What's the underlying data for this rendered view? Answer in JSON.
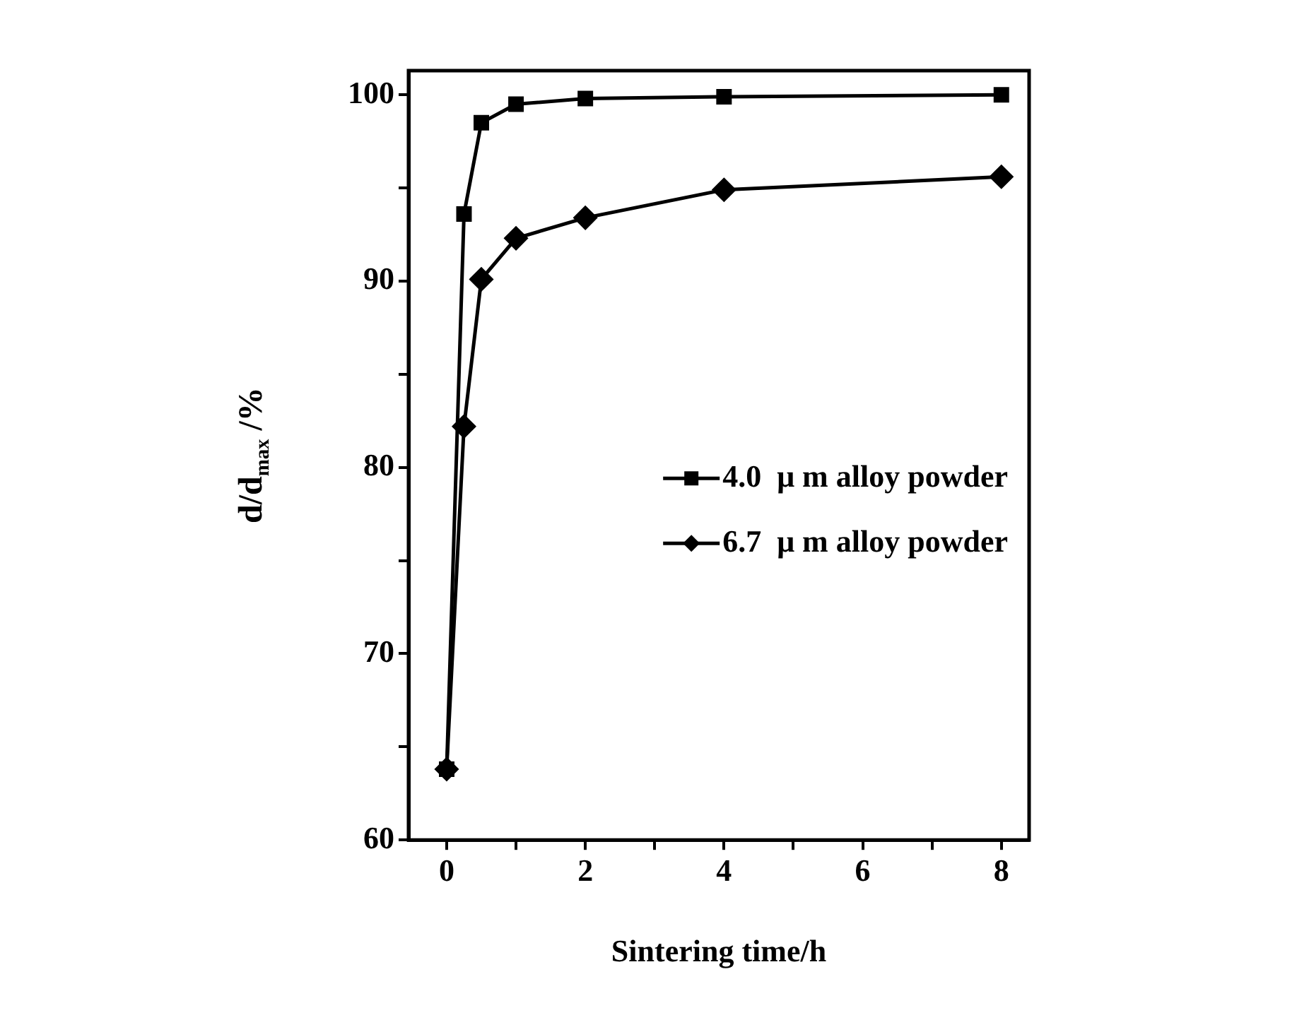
{
  "chart_data": {
    "type": "line",
    "xlabel": "Sintering time/h",
    "ylabel": "d/d$_{max}$ /%",
    "x": [
      0,
      0.25,
      0.5,
      1,
      2,
      4,
      8
    ],
    "series": [
      {
        "name": "4.0  μ m alloy powder",
        "color": "#000000",
        "marker": "square",
        "values": [
          63.8,
          93.6,
          98.5,
          99.5,
          99.8,
          99.9,
          100
        ]
      },
      {
        "name": "6.7  μ m alloy powder",
        "color": "#000000",
        "marker": "diamond",
        "values": [
          63.8,
          82.2,
          90.1,
          92.3,
          93.4,
          94.9,
          95.6
        ]
      }
    ],
    "xlim": [
      -0.55,
      8.4
    ],
    "xticks": [
      0,
      {
        "value": 1,
        "label": null
      },
      2,
      {
        "value": 3,
        "label": null
      },
      4,
      {
        "value": 5,
        "label": null
      },
      6,
      {
        "value": 7,
        "label": null
      },
      8
    ],
    "ylim": [
      60,
      101.3
    ],
    "yticks": [
      60,
      {
        "value": 65,
        "label": null
      },
      70,
      {
        "value": 75,
        "label": null
      },
      80,
      {
        "value": 85,
        "label": null
      },
      90,
      {
        "value": 95,
        "label": null
      },
      100
    ],
    "grid": false,
    "legend": "right",
    "line_style": "solid"
  }
}
